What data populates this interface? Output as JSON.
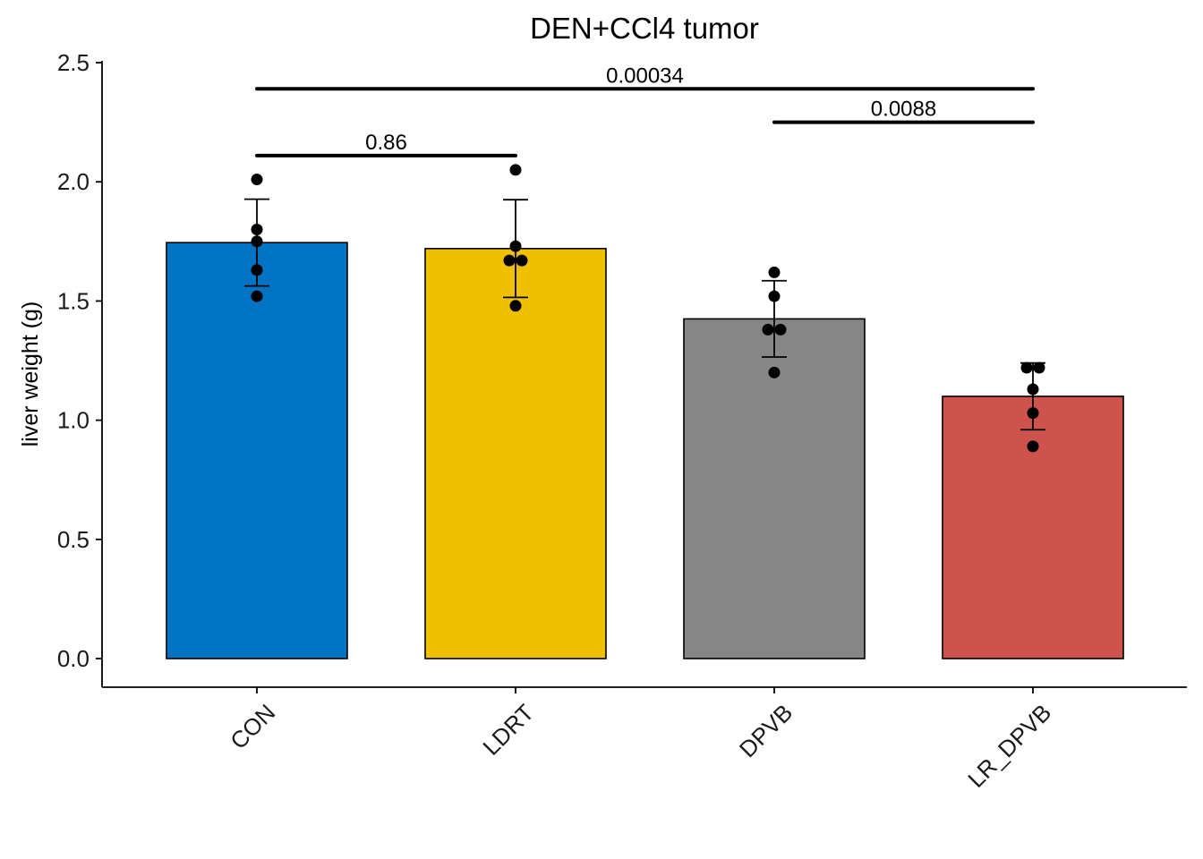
{
  "chart_data": {
    "type": "bar",
    "title": "DEN+CCl4 tumor",
    "xlabel": "",
    "ylabel": "liver weight (g)",
    "ylim": [
      -0.12,
      2.5
    ],
    "yticks": [
      "0.0",
      "0.5",
      "1.0",
      "1.5",
      "2.0",
      "2.5"
    ],
    "categories": [
      "CON",
      "LDRT",
      "DPVB",
      "LR_DPVB"
    ],
    "values": [
      1.745,
      1.72,
      1.425,
      1.1
    ],
    "error_low": [
      1.563,
      1.515,
      1.265,
      0.96
    ],
    "error_high": [
      1.927,
      1.925,
      1.585,
      1.24
    ],
    "colors": [
      "#0073C2",
      "#EFC000",
      "#868686",
      "#CD534C"
    ],
    "points": [
      [
        2.01,
        1.8,
        1.75,
        1.63,
        1.52
      ],
      [
        2.05,
        1.73,
        1.67,
        1.67,
        1.48
      ],
      [
        1.62,
        1.52,
        1.38,
        1.38,
        1.2
      ],
      [
        1.22,
        1.22,
        1.13,
        1.03,
        0.89
      ]
    ],
    "comparisons": [
      {
        "from": "CON",
        "to": "LR_DPVB",
        "label": "0.00034",
        "y": 2.39
      },
      {
        "from": "DPVB",
        "to": "LR_DPVB",
        "label": "0.0088",
        "y": 2.25
      },
      {
        "from": "CON",
        "to": "LDRT",
        "label": "0.86",
        "y": 2.11
      }
    ],
    "grid": false,
    "legend": "none"
  }
}
